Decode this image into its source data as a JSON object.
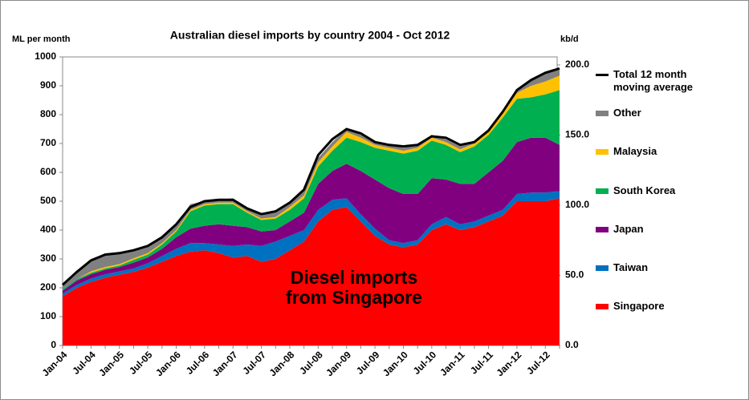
{
  "chart_data": {
    "type": "area",
    "stacked": true,
    "title": "Australian diesel imports by country 2004 - Oct 2012",
    "y_label": "ML per month",
    "y2_label": "kb/d",
    "annotation": "Diesel imports from Singapore",
    "categories": [
      "Jan-04",
      null,
      "Jul-04",
      null,
      "Jan-05",
      null,
      "Jul-05",
      null,
      "Jan-06",
      null,
      "Jul-06",
      null,
      "Jan-07",
      null,
      "Jul-07",
      null,
      "Jan-08",
      null,
      "Jul-08",
      null,
      "Jan-09",
      null,
      "Jul-09",
      null,
      "Jan-10",
      null,
      "Jul-10",
      null,
      "Jan-11",
      null,
      "Jul-11",
      null,
      "Jan-12",
      null,
      "Jul-12",
      null
    ],
    "ylim": [
      0,
      1000
    ],
    "yticks": [
      0,
      100,
      200,
      300,
      400,
      500,
      600,
      700,
      800,
      900,
      1000
    ],
    "y2lim": [
      0,
      205.7
    ],
    "y2ticks": [
      {
        "value": 0,
        "label": "0.0"
      },
      {
        "value": 50,
        "label": "50.0"
      },
      {
        "value": 100,
        "label": "100.0"
      },
      {
        "value": 150,
        "label": "150.0"
      },
      {
        "value": 200,
        "label": "200.0"
      }
    ],
    "grid": false,
    "legend": "right",
    "series": [
      {
        "name": "Singapore",
        "color": "#ff0000",
        "values": [
          170,
          200,
          220,
          235,
          245,
          255,
          270,
          290,
          310,
          325,
          330,
          320,
          305,
          310,
          290,
          300,
          330,
          360,
          430,
          470,
          480,
          430,
          380,
          350,
          340,
          350,
          400,
          420,
          400,
          410,
          430,
          450,
          500,
          500,
          500,
          510
        ]
      },
      {
        "name": "Taiwan",
        "color": "#0070c0",
        "values": [
          10,
          10,
          12,
          12,
          12,
          12,
          15,
          20,
          25,
          30,
          25,
          30,
          40,
          40,
          55,
          60,
          50,
          40,
          40,
          35,
          30,
          25,
          25,
          15,
          15,
          15,
          20,
          25,
          20,
          20,
          20,
          20,
          25,
          30,
          30,
          25
        ]
      },
      {
        "name": "Japan",
        "color": "#800080",
        "values": [
          10,
          15,
          15,
          15,
          15,
          20,
          20,
          25,
          40,
          50,
          60,
          70,
          70,
          60,
          50,
          40,
          50,
          60,
          90,
          100,
          120,
          150,
          170,
          180,
          170,
          160,
          160,
          130,
          140,
          130,
          150,
          170,
          180,
          190,
          190,
          160
        ]
      },
      {
        "name": "South Korea",
        "color": "#00b050",
        "values": [
          5,
          5,
          5,
          5,
          5,
          10,
          10,
          15,
          20,
          60,
          70,
          70,
          75,
          50,
          40,
          40,
          40,
          50,
          60,
          70,
          90,
          100,
          110,
          130,
          140,
          150,
          130,
          120,
          110,
          130,
          130,
          150,
          150,
          140,
          150,
          190
        ]
      },
      {
        "name": "Malaysia",
        "color": "#ffc000",
        "values": [
          0,
          0,
          5,
          5,
          5,
          5,
          5,
          5,
          5,
          5,
          5,
          5,
          5,
          5,
          5,
          5,
          10,
          10,
          15,
          15,
          20,
          15,
          10,
          10,
          10,
          10,
          10,
          10,
          10,
          10,
          10,
          15,
          20,
          40,
          45,
          50
        ]
      },
      {
        "name": "Other",
        "color": "#808080",
        "values": [
          20,
          30,
          40,
          45,
          40,
          30,
          25,
          20,
          20,
          20,
          10,
          10,
          15,
          10,
          10,
          20,
          15,
          15,
          15,
          15,
          10,
          10,
          10,
          10,
          10,
          10,
          10,
          10,
          10,
          10,
          10,
          10,
          15,
          25,
          30,
          20
        ]
      },
      {
        "name": "Total 12 month moving average",
        "type": "line",
        "color": "#000000",
        "values": [
          210,
          255,
          295,
          315,
          320,
          330,
          345,
          375,
          420,
          480,
          500,
          505,
          505,
          475,
          455,
          465,
          495,
          540,
          660,
          715,
          750,
          735,
          705,
          695,
          690,
          695,
          725,
          720,
          695,
          705,
          745,
          810,
          885,
          920,
          945,
          960
        ]
      }
    ]
  }
}
